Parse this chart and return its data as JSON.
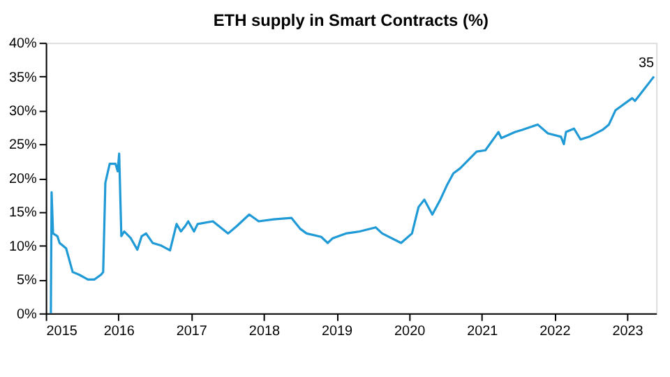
{
  "chart_data": {
    "type": "line",
    "title": "ETH supply in Smart Contracts (%)",
    "x": [
      2015.07,
      2015.08,
      2015.1,
      2015.16,
      2015.19,
      2015.28,
      2015.37,
      2015.46,
      2015.58,
      2015.67,
      2015.76,
      2015.79,
      2015.82,
      2015.88,
      2015.96,
      2015.99,
      2016.01,
      2016.04,
      2016.08,
      2016.17,
      2016.26,
      2016.32,
      2016.38,
      2016.47,
      2016.59,
      2016.71,
      2016.8,
      2016.86,
      2016.92,
      2016.96,
      2017.04,
      2017.09,
      2017.3,
      2017.51,
      2017.63,
      2017.8,
      2017.93,
      2018.14,
      2018.38,
      2018.5,
      2018.59,
      2018.79,
      2018.88,
      2018.95,
      2019.13,
      2019.32,
      2019.54,
      2019.63,
      2019.89,
      2020.04,
      2020.13,
      2020.21,
      2020.32,
      2020.43,
      2020.52,
      2020.61,
      2020.7,
      2020.93,
      2021.05,
      2021.23,
      2021.27,
      2021.46,
      2021.55,
      2021.77,
      2021.91,
      2022.09,
      2022.13,
      2022.16,
      2022.27,
      2022.36,
      2022.48,
      2022.66,
      2022.75,
      2022.84,
      2023.07,
      2023.11,
      2023.37
    ],
    "series": [
      {
        "color": "#1f9ad6",
        "values": [
          0,
          17.9,
          11.8,
          11.4,
          10.4,
          9.6,
          6.1,
          5.7,
          5.0,
          5.0,
          5.7,
          6.1,
          19.3,
          22.1,
          22.1,
          21.0,
          23.6,
          11.4,
          12.1,
          11.1,
          9.4,
          11.4,
          11.8,
          10.4,
          10.0,
          9.3,
          13.2,
          12.1,
          12.9,
          13.6,
          12.1,
          13.2,
          13.6,
          11.8,
          12.9,
          14.6,
          13.6,
          13.9,
          14.1,
          12.5,
          11.8,
          11.3,
          10.4,
          11.1,
          11.8,
          12.1,
          12.7,
          11.8,
          10.4,
          11.8,
          15.7,
          16.8,
          14.6,
          16.8,
          18.9,
          20.7,
          21.4,
          23.9,
          24.1,
          26.8,
          25.9,
          26.8,
          27.1,
          27.9,
          26.6,
          26.1,
          25.0,
          26.8,
          27.3,
          25.7,
          26.1,
          27.1,
          27.9,
          30.0,
          31.8,
          31.4,
          35
        ],
        "value_labels": [
          null,
          null,
          null,
          null,
          null,
          null,
          null,
          null,
          null,
          null,
          null,
          null,
          null,
          null,
          null,
          null,
          null,
          null,
          null,
          null,
          null,
          null,
          null,
          null,
          null,
          null,
          null,
          null,
          null,
          null,
          null,
          null,
          null,
          null,
          null,
          null,
          null,
          null,
          null,
          null,
          null,
          null,
          null,
          null,
          null,
          null,
          null,
          null,
          null,
          null,
          null,
          null,
          null,
          null,
          null,
          null,
          null,
          null,
          null,
          null,
          null,
          null,
          null,
          null,
          null,
          null,
          null,
          null,
          null,
          null,
          null,
          null,
          null,
          null,
          null,
          null,
          "35"
        ]
      }
    ],
    "xlim": [
      2015,
      2023.4
    ],
    "xticks": [
      2015,
      2016,
      2017,
      2018,
      2019,
      2020,
      2021,
      2022,
      2023
    ],
    "ylim": [
      0,
      40
    ],
    "yticks": [
      {
        "value": 0,
        "label": "0%"
      },
      {
        "value": 5,
        "label": "5%"
      },
      {
        "value": 10,
        "label": "10%"
      },
      {
        "value": 15,
        "label": "15%"
      },
      {
        "value": 20,
        "label": "20%"
      },
      {
        "value": 25,
        "label": "25%"
      },
      {
        "value": 30,
        "label": "30%"
      },
      {
        "value": 35,
        "label": "35%"
      },
      {
        "value": 40,
        "label": "40%"
      }
    ],
    "grid": false,
    "marker": "none",
    "line_style": "solid"
  }
}
